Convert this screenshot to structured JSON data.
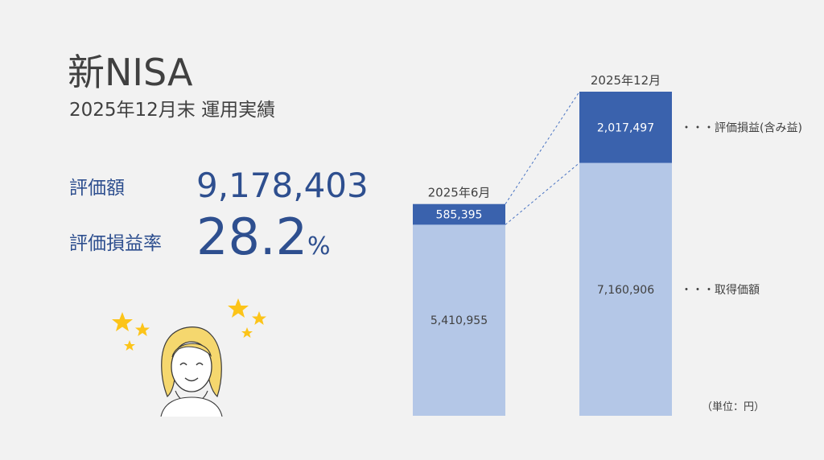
{
  "header": {
    "title": "新NISA",
    "subtitle": "2025年12月末 運用実績"
  },
  "kpi": {
    "valuation_label": "評価額",
    "valuation_value": "9,178,403",
    "rate_label": "評価損益率",
    "rate_value": "28.2",
    "rate_unit": "%"
  },
  "icons": {
    "stars": "star-icon",
    "avatar": "smiling-person-icon"
  },
  "colors": {
    "background": "#f2f2f2",
    "accent_text": "#2e4f8f",
    "gain_bar": "#3a62ad",
    "cost_bar": "#b4c7e7",
    "star": "#fcc419",
    "hair": "#f5d76e"
  },
  "chart_data": {
    "type": "bar",
    "stacked": true,
    "categories": [
      "2025年6月",
      "2025年12月"
    ],
    "series": [
      {
        "name": "取得価額",
        "values": [
          5410955,
          7160906
        ],
        "labels": [
          "5,410,955",
          "7,160,906"
        ],
        "color": "#b4c7e7"
      },
      {
        "name": "評価損益(含み益)",
        "values": [
          585395,
          2017497
        ],
        "labels": [
          "585,395",
          "2,017,497"
        ],
        "color": "#3a62ad"
      }
    ],
    "legend": [
      {
        "text": "・・・評価損益(含み益)",
        "series": "評価損益(含み益)"
      },
      {
        "text": "・・・取得価額",
        "series": "取得価額"
      }
    ],
    "unit_note": "（単位：円）",
    "ylim": [
      0,
      9178403
    ]
  }
}
